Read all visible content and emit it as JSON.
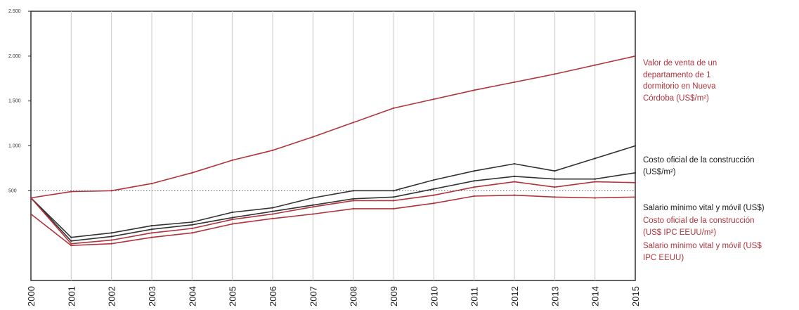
{
  "chart_data": {
    "type": "line",
    "title": "",
    "xlabel": "",
    "ylabel": "",
    "x": [
      "2000",
      "2001",
      "2002",
      "2003",
      "2004",
      "2005",
      "2006",
      "2007",
      "2008",
      "2009",
      "2010",
      "2011",
      "2012",
      "2013",
      "2014",
      "2015"
    ],
    "yticks": [
      "2.500",
      "2.000",
      "1.500",
      "1.000",
      "500"
    ],
    "ylim": [
      -500,
      2500
    ],
    "grid": true,
    "legend": "right",
    "series": [
      {
        "name": "Valor de venta de un\ndepartamento de 1\ndormitorio en Nueva\nCórdoba (US$/m²)",
        "color": "#b0343c",
        "values": [
          420,
          490,
          500,
          580,
          700,
          840,
          950,
          1100,
          1260,
          1420,
          1520,
          1620,
          1710,
          1800,
          1900,
          2000
        ]
      },
      {
        "name": "Costo oficial de la construcción\n(US$/m²)",
        "color": "#333333",
        "values": [
          420,
          -20,
          30,
          110,
          150,
          260,
          310,
          420,
          500,
          500,
          620,
          720,
          800,
          720,
          860,
          1000
        ]
      },
      {
        "name": "Salario mínimo vital y móvil (US$)",
        "color": "#333333",
        "values": [
          420,
          -60,
          -10,
          70,
          120,
          200,
          270,
          340,
          410,
          430,
          520,
          610,
          660,
          630,
          630,
          700
        ]
      },
      {
        "name": "Costo oficial de la construcción\n(US$ IPC EEUU/m²)",
        "color": "#b0343c",
        "values": [
          420,
          -90,
          -50,
          30,
          80,
          180,
          240,
          320,
          390,
          390,
          450,
          540,
          600,
          540,
          600,
          590
        ]
      },
      {
        "name": "Salario mínimo vital y móvil (US$\nIPC EEUU)",
        "color": "#b0343c",
        "values": [
          240,
          -110,
          -90,
          -20,
          30,
          130,
          190,
          240,
          300,
          300,
          360,
          440,
          450,
          430,
          420,
          430
        ]
      }
    ]
  }
}
